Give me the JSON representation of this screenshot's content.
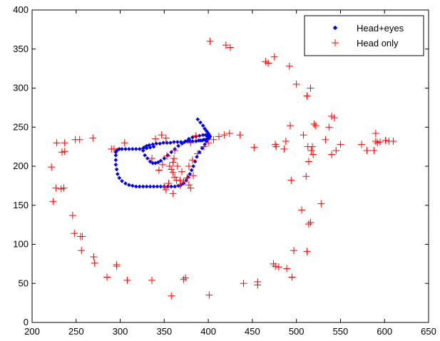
{
  "chart_data": {
    "type": "scatter",
    "title": "",
    "xlabel": "",
    "ylabel": "",
    "xlim": [
      200,
      650
    ],
    "ylim": [
      0,
      400
    ],
    "xticks": [
      200,
      250,
      300,
      350,
      400,
      450,
      500,
      550,
      600,
      650
    ],
    "yticks": [
      0,
      50,
      100,
      150,
      200,
      250,
      300,
      350,
      400
    ],
    "grid": false,
    "legend_position": "top-right",
    "series": [
      {
        "name": "Head+eyes",
        "color": "#0000ff",
        "marker": "diamond",
        "x": [
          388,
          391,
          394,
          396,
          398,
          400,
          401,
          402,
          401,
          399,
          397,
          395,
          393,
          391,
          389,
          386,
          382,
          379,
          376,
          373,
          369,
          365,
          361,
          357,
          353,
          349,
          345,
          341,
          337,
          333,
          330,
          327,
          326,
          328,
          331,
          334,
          337,
          340,
          343,
          346,
          350,
          354,
          358,
          362,
          366,
          370,
          374,
          378,
          382,
          386,
          390,
          394,
          397,
          399,
          400,
          398,
          396,
          393,
          390,
          387,
          385,
          383,
          381,
          379,
          377,
          375,
          372,
          369,
          366,
          362,
          358,
          354,
          350,
          346,
          342,
          338,
          334,
          330,
          326,
          322,
          318,
          314,
          310,
          306,
          302,
          299,
          297,
          296,
          295,
          295,
          295,
          295,
          296,
          297,
          299,
          302,
          306,
          310,
          314,
          318,
          322,
          326,
          330,
          334,
          338
        ],
        "y": [
          260,
          256,
          252,
          248,
          245,
          242,
          240,
          238,
          236,
          235,
          234,
          234,
          233,
          233,
          233,
          232,
          232,
          232,
          232,
          231,
          231,
          231,
          231,
          230,
          230,
          230,
          229,
          229,
          228,
          227,
          226,
          224,
          220,
          214,
          210,
          206,
          204,
          204,
          205,
          207,
          210,
          214,
          218,
          222,
          226,
          229,
          232,
          235,
          237,
          238,
          239,
          240,
          240,
          238,
          235,
          232,
          228,
          223,
          218,
          212,
          206,
          200,
          195,
          190,
          186,
          182,
          178,
          176,
          175,
          174,
          174,
          174,
          174,
          174,
          174,
          174,
          174,
          174,
          174,
          174,
          174,
          175,
          176,
          178,
          181,
          185,
          190,
          196,
          202,
          208,
          214,
          218,
          220,
          221,
          222,
          222,
          222,
          222,
          222,
          222,
          222,
          223,
          223,
          224,
          225
        ]
      },
      {
        "name": "Head only",
        "color": "#ff0000",
        "marker": "plus",
        "x": [
          402,
          420,
          425,
          465,
          468,
          475,
          492,
          500,
          512,
          516,
          494,
          520,
          522,
          537,
          540,
          543,
          533,
          550,
          574,
          580,
          588,
          590,
          592,
          595,
          601,
          605,
          610,
          590,
          545,
          540,
          518,
          514,
          511,
          528,
          516,
          514,
          497,
          506,
          512,
          495,
          489,
          480,
          476,
          474,
          456,
          456,
          440,
          401,
          372,
          374,
          358,
          336,
          308,
          296,
          296,
          285,
          271,
          270,
          257,
          255,
          256,
          248,
          246,
          233,
          236,
          224,
          227,
          222,
          228,
          234,
          237,
          237,
          249,
          254,
          269,
          290,
          293,
          305,
          336,
          340,
          347,
          352,
          353,
          348,
          344,
          356,
          358,
          360,
          362,
          364,
          368,
          376,
          380,
          386,
          355,
          350,
          352,
          360,
          368,
          378,
          382,
          388,
          395,
          400,
          406,
          412,
          418,
          424,
          436,
          452,
          476,
          477,
          486,
          488,
          493,
          508,
          513,
          517,
          519,
          361,
          360,
          365,
          370,
          372,
          378,
          380,
          383,
          362
        ],
        "y": [
          360,
          355,
          352,
          334,
          332,
          340,
          328,
          305,
          290,
          300,
          182,
          254,
          252,
          250,
          264,
          262,
          234,
          228,
          228,
          220,
          220,
          232,
          230,
          231,
          233,
          232,
          232,
          242,
          220,
          215,
          225,
          206,
          187,
          152,
          128,
          126,
          92,
          144,
          91,
          58,
          69,
          71,
          72,
          75,
          48,
          52,
          50,
          35,
          55,
          57,
          34,
          54,
          54,
          72,
          74,
          58,
          76,
          84,
          110,
          110,
          92,
          114,
          137,
          171,
          172,
          155,
          172,
          199,
          230,
          218,
          230,
          219,
          234,
          234,
          236,
          222,
          222,
          230,
          210,
          235,
          240,
          236,
          213,
          202,
          195,
          200,
          196,
          192,
          186,
          182,
          176,
          185,
          230,
          239,
          178,
          174,
          170,
          165,
          182,
          200,
          208,
          216,
          225,
          230,
          234,
          238,
          240,
          242,
          240,
          224,
          228,
          225,
          222,
          232,
          252,
          240,
          225,
          220,
          215,
          210,
          205,
          200,
          193,
          180,
          176,
          172,
          188,
          220
        ]
      }
    ]
  }
}
